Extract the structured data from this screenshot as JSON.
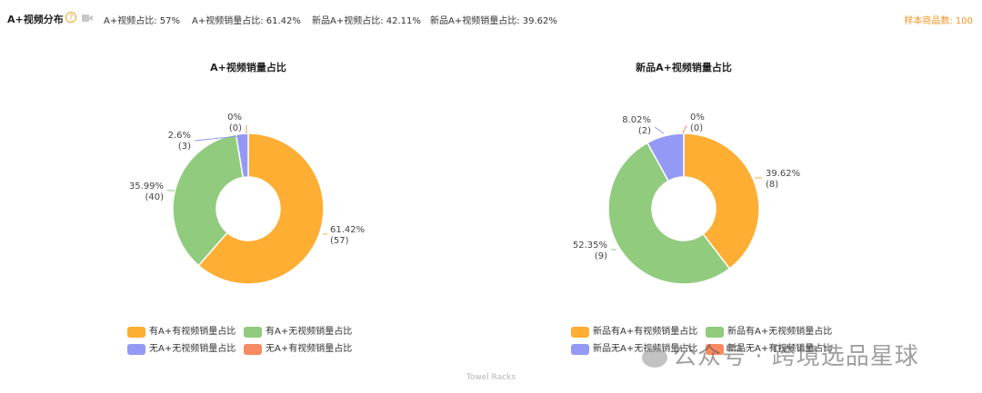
{
  "header": {
    "title": "A+视频分布",
    "help_icon": "?",
    "stats": [
      "A+视频占比: 57%",
      "A+视频销量占比: 61.42%",
      "新品A+视频占比: 42.11%",
      "新品A+视频销量占比: 39.62%"
    ],
    "sample_count": "样本商品数: 100"
  },
  "chart_data": [
    {
      "type": "pie",
      "title": "A+视频销量占比",
      "series": [
        {
          "name": "有A+有视频销量占比",
          "percent": 61.42,
          "count": 57,
          "color": "#fdae33"
        },
        {
          "name": "有A+无视频销量占比",
          "percent": 35.99,
          "count": 40,
          "color": "#91cb7e"
        },
        {
          "name": "无A+无视频销量占比",
          "percent": 2.6,
          "count": 3,
          "color": "#9499f5"
        },
        {
          "name": "无A+有视频销量占比",
          "percent": 0,
          "count": 0,
          "color": "#f78a62"
        }
      ],
      "labels": [
        {
          "pct": "61.42%",
          "cnt": "(57)"
        },
        {
          "pct": "35.99%",
          "cnt": "(40)"
        },
        {
          "pct": "2.6%",
          "cnt": "(3)"
        },
        {
          "pct": "0%",
          "cnt": "(0)"
        }
      ]
    },
    {
      "type": "pie",
      "title": "新品A+视频销量占比",
      "series": [
        {
          "name": "新品有A+有视频销量占比",
          "percent": 39.62,
          "count": 8,
          "color": "#fdae33"
        },
        {
          "name": "新品有A+无视频销量占比",
          "percent": 52.35,
          "count": 9,
          "color": "#91cb7e"
        },
        {
          "name": "新品无A+无视频销量占比",
          "percent": 8.02,
          "count": 2,
          "color": "#9499f5"
        },
        {
          "name": "新品无A+有视频销量占比",
          "percent": 0,
          "count": 0,
          "color": "#f78a62"
        }
      ],
      "labels": [
        {
          "pct": "39.62%",
          "cnt": "(8)"
        },
        {
          "pct": "52.35%",
          "cnt": "(9)"
        },
        {
          "pct": "8.02%",
          "cnt": "(2)"
        },
        {
          "pct": "0%",
          "cnt": "(0)"
        }
      ]
    }
  ],
  "footer": {
    "category": "Towel Racks"
  },
  "watermark": {
    "text": "公众号 · 跨境选品星球"
  }
}
